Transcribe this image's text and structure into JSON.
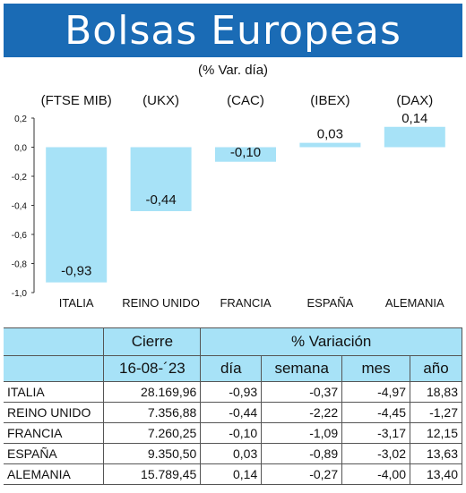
{
  "header": {
    "title": "Bolsas Europeas"
  },
  "subtitle": "(% Var. día)",
  "chart_data": {
    "type": "bar",
    "indices": [
      "(FTSE MIB)",
      "(UKX)",
      "(CAC)",
      "(IBEX)",
      "(DAX)"
    ],
    "categories": [
      "ITALIA",
      "REINO UNIDO",
      "FRANCIA",
      "ESPAÑA",
      "ALEMANIA"
    ],
    "values": [
      -0.93,
      -0.44,
      -0.1,
      0.03,
      0.14
    ],
    "value_labels": [
      "-0,93",
      "-0,44",
      "-0,10",
      "0,03",
      "0,14"
    ],
    "yticks": [
      "0,2",
      "0,0",
      "-0,2",
      "-0,4",
      "-0,6",
      "-0,8",
      "-1,0"
    ],
    "ylim": [
      -1.0,
      0.2
    ],
    "bar_color": "#a7e2f7"
  },
  "table": {
    "group_headers": {
      "cierre": "Cierre",
      "variacion": "% Variación"
    },
    "col_headers": {
      "date": "16-08-´23",
      "dia": "día",
      "semana": "semana",
      "mes": "mes",
      "anio": "año"
    },
    "rows": [
      {
        "country": "ITALIA",
        "cierre": "28.169,96",
        "dia": "-0,93",
        "semana": "-0,37",
        "mes": "-4,97",
        "anio": "18,83"
      },
      {
        "country": "REINO UNIDO",
        "cierre": "7.356,88",
        "dia": "-0,44",
        "semana": "-2,22",
        "mes": "-4,45",
        "anio": "-1,27"
      },
      {
        "country": "FRANCIA",
        "cierre": "7.260,25",
        "dia": "-0,10",
        "semana": "-1,09",
        "mes": "-3,17",
        "anio": "12,15"
      },
      {
        "country": "ESPAÑA",
        "cierre": "9.350,50",
        "dia": "0,03",
        "semana": "-0,89",
        "mes": "-3,02",
        "anio": "13,63"
      },
      {
        "country": "ALEMANIA",
        "cierre": "15.789,45",
        "dia": "0,14",
        "semana": "-0,27",
        "mes": "-4,00",
        "anio": "13,40"
      }
    ]
  }
}
